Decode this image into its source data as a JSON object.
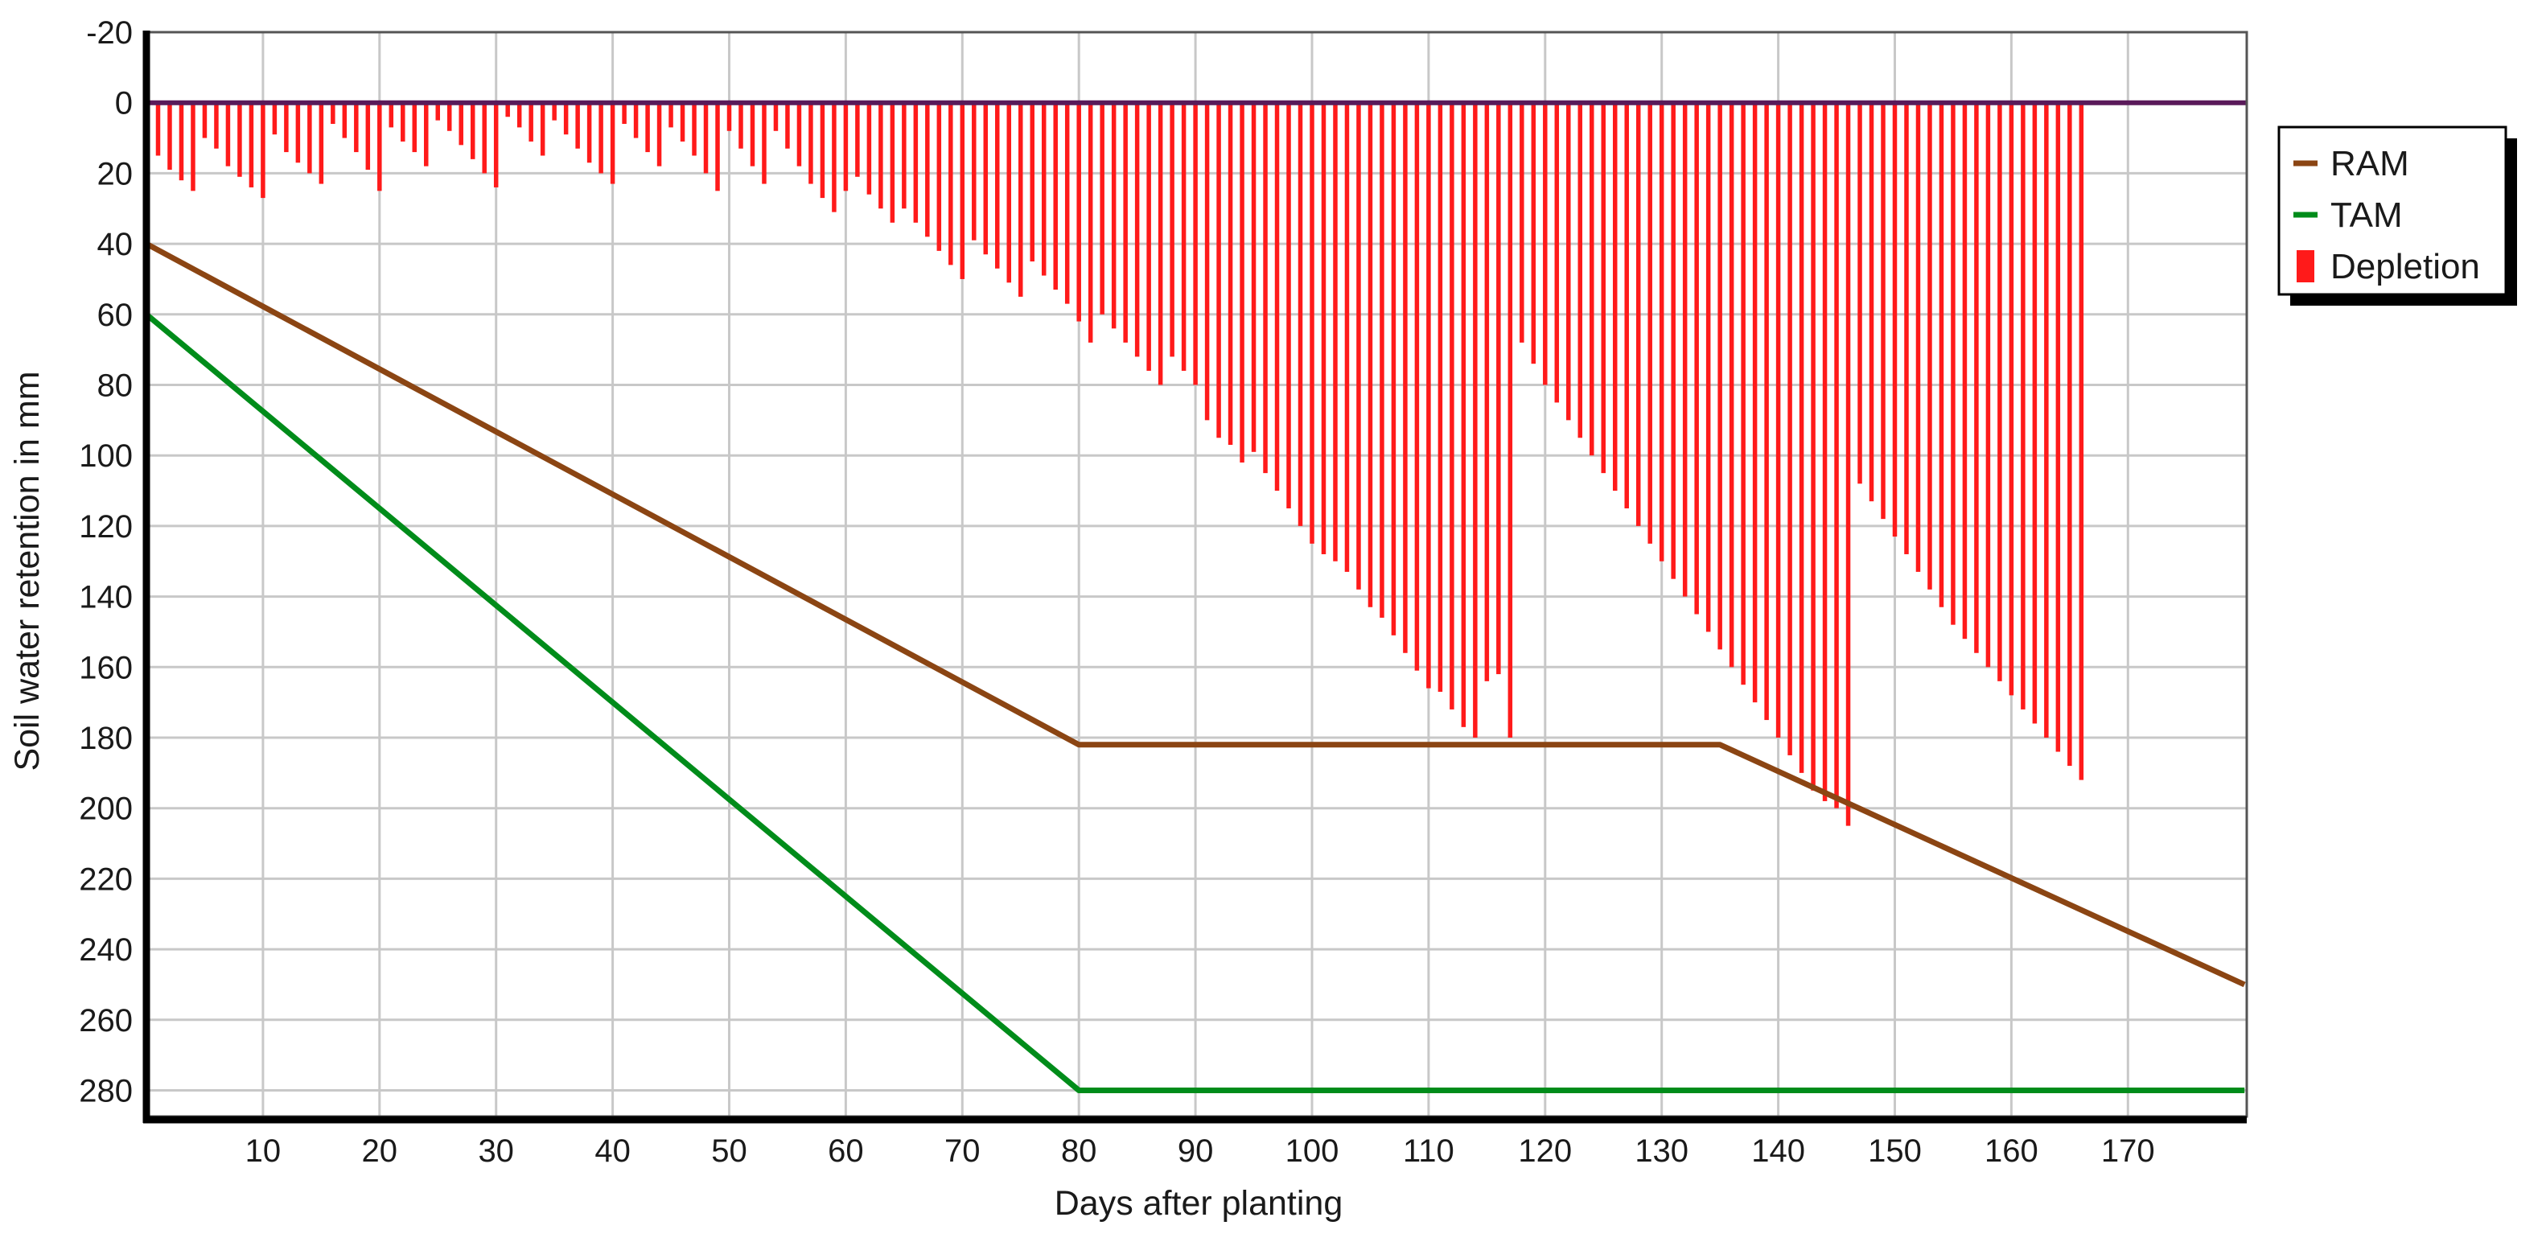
{
  "chart_data": {
    "type": "bar+line",
    "xlabel": "Days after planting",
    "ylabel": "Soil water retention in mm",
    "xlim": [
      0,
      180
    ],
    "ylim": [
      -20,
      290
    ],
    "y_inverted": true,
    "x_ticks": [
      10,
      20,
      30,
      40,
      50,
      60,
      70,
      80,
      90,
      100,
      110,
      120,
      130,
      140,
      150,
      160,
      170
    ],
    "y_ticks": [
      -20,
      0,
      20,
      40,
      60,
      80,
      100,
      120,
      140,
      160,
      180,
      200,
      220,
      240,
      260,
      280
    ],
    "grid": true,
    "legend_position": "right",
    "legend": [
      {
        "label": "RAM",
        "kind": "line",
        "color": "#8b4513"
      },
      {
        "label": "TAM",
        "kind": "line",
        "color": "#008c1a"
      },
      {
        "label": "Depletion",
        "kind": "bar",
        "color": "#ff1a1a"
      }
    ],
    "series": [
      {
        "name": "RAM",
        "kind": "line",
        "color": "#8b4513",
        "points": [
          [
            0,
            40
          ],
          [
            80,
            182
          ],
          [
            135,
            182
          ],
          [
            180,
            250
          ]
        ]
      },
      {
        "name": "TAM",
        "kind": "line",
        "color": "#008c1a",
        "points": [
          [
            0,
            60
          ],
          [
            80,
            280
          ],
          [
            180,
            280
          ]
        ]
      },
      {
        "name": "Depletion",
        "kind": "bar",
        "color": "#ff1a1a",
        "x_start": 1,
        "values": [
          15,
          19,
          22,
          25,
          10,
          13,
          18,
          21,
          24,
          27,
          9,
          14,
          17,
          20,
          23,
          6,
          10,
          14,
          19,
          25,
          7,
          11,
          14,
          18,
          5,
          8,
          12,
          16,
          20,
          24,
          4,
          7,
          11,
          15,
          5,
          9,
          13,
          17,
          20,
          23,
          6,
          10,
          14,
          18,
          7,
          11,
          15,
          20,
          25,
          8,
          13,
          18,
          23,
          8,
          13,
          18,
          23,
          27,
          31,
          25,
          21,
          26,
          30,
          34,
          30,
          34,
          38,
          42,
          46,
          50,
          39,
          43,
          47,
          51,
          55,
          45,
          49,
          53,
          57,
          62,
          68,
          60,
          64,
          68,
          72,
          76,
          80,
          72,
          76,
          80,
          90,
          95,
          97,
          102,
          99,
          105,
          110,
          115,
          120,
          125,
          128,
          130,
          133,
          138,
          143,
          146,
          151,
          156,
          161,
          166,
          167,
          172,
          177,
          180,
          164,
          162,
          180,
          68,
          74,
          80,
          85,
          90,
          95,
          100,
          105,
          110,
          115,
          120,
          125,
          130,
          135,
          140,
          145,
          150,
          155,
          160,
          165,
          170,
          175,
          180,
          185,
          190,
          195,
          198,
          200,
          205,
          108,
          113,
          118,
          123,
          128,
          133,
          138,
          143,
          148,
          152,
          156,
          160,
          164,
          168,
          172,
          176,
          180,
          184,
          188,
          192
        ]
      }
    ]
  }
}
